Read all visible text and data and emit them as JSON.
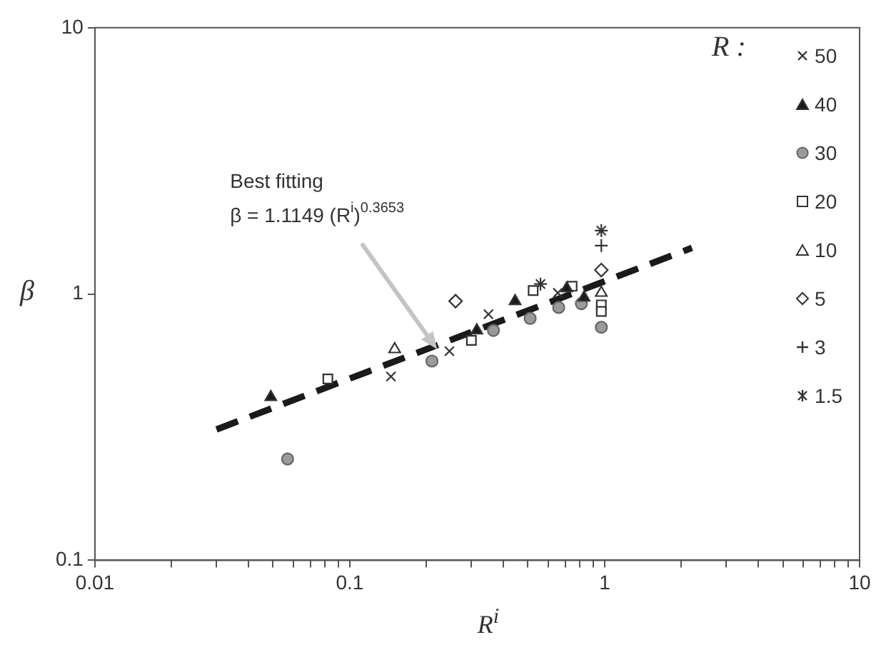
{
  "chart_data": {
    "type": "scatter",
    "xlabel": "R$^{i}$",
    "ylabel": "β",
    "legend_title": "R :",
    "legend": "top right",
    "log": "xy",
    "grid": false,
    "xlim": [
      0.01,
      10
    ],
    "ylim": [
      0.1,
      10
    ],
    "xticks": [
      0.01,
      {
        "value": 0.02,
        "label": null
      },
      {
        "value": 0.03,
        "label": null
      },
      {
        "value": 0.04,
        "label": null
      },
      {
        "value": 0.05,
        "label": null
      },
      {
        "value": 0.06,
        "label": null
      },
      {
        "value": 0.07,
        "label": null
      },
      {
        "value": 0.08,
        "label": null
      },
      {
        "value": 0.09,
        "label": null
      },
      0.1,
      {
        "value": 0.2,
        "label": null
      },
      {
        "value": 0.3,
        "label": null
      },
      {
        "value": 0.4,
        "label": null
      },
      {
        "value": 0.5,
        "label": null
      },
      {
        "value": 0.6,
        "label": null
      },
      {
        "value": 0.7,
        "label": null
      },
      {
        "value": 0.8,
        "label": null
      },
      {
        "value": 0.9,
        "label": null
      },
      1,
      {
        "value": 2,
        "label": null
      },
      {
        "value": 3,
        "label": null
      },
      {
        "value": 4,
        "label": null
      },
      {
        "value": 5,
        "label": null
      },
      {
        "value": 6,
        "label": null
      },
      {
        "value": 7,
        "label": null
      },
      {
        "value": 8,
        "label": null
      },
      {
        "value": 9,
        "label": null
      },
      10
    ],
    "yticks": [
      0.1,
      1,
      10
    ],
    "annotations": [
      {
        "text": "Best fitting\nβ = 1.1149 (R$^{i}$)$^{0.3653}$",
        "x": 0.22,
        "y": 0.62
      }
    ],
    "series": [
      {
        "name": "50",
        "marker": "cross",
        "color": "#333333",
        "x": [
          0.145,
          0.246,
          0.35,
          0.655
        ],
        "values": [
          0.49,
          0.61,
          0.84,
          1.01
        ]
      },
      {
        "name": "40",
        "marker": "triangle",
        "color": "#1a1a1a",
        "x": [
          0.049,
          0.315,
          0.445,
          0.71,
          0.83
        ],
        "values": [
          0.41,
          0.73,
          0.94,
          1.05,
          0.97
        ]
      },
      {
        "name": "30",
        "marker": "circle",
        "color": "#9a9a9a",
        "x": [
          0.057,
          0.21,
          0.366,
          0.51,
          0.66,
          0.81,
          0.97
        ],
        "values": [
          0.24,
          0.56,
          0.73,
          0.81,
          0.89,
          0.92,
          0.75
        ]
      },
      {
        "name": "20",
        "marker": "square",
        "color": "#ffffff",
        "x": [
          0.082,
          0.3,
          0.524,
          0.745,
          0.97,
          0.97
        ],
        "values": [
          0.48,
          0.67,
          1.03,
          1.07,
          0.91,
          0.86
        ]
      },
      {
        "name": "10",
        "marker": "triangle",
        "color": "#ffffff",
        "x": [
          0.15,
          0.97
        ],
        "values": [
          0.62,
          1.01
        ]
      },
      {
        "name": "5",
        "marker": "diamond",
        "color": "#ffffff",
        "x": [
          0.26,
          0.97
        ],
        "values": [
          0.94,
          1.23
        ]
      },
      {
        "name": "3",
        "marker": "plus",
        "color": "#333333",
        "x": [
          0.97
        ],
        "values": [
          1.52
        ]
      },
      {
        "name": "1.5",
        "color": "#333333",
        "x": [
          0.56,
          0.97
        ],
        "values": [
          1.09,
          1.73
        ]
      },
      {
        "type": "line",
        "line_style": "dashed",
        "marker": "none",
        "color": "#1a1a1a",
        "x": [
          0.03,
          2.2
        ],
        "values": [
          0.31,
          1.49
        ]
      }
    ]
  }
}
